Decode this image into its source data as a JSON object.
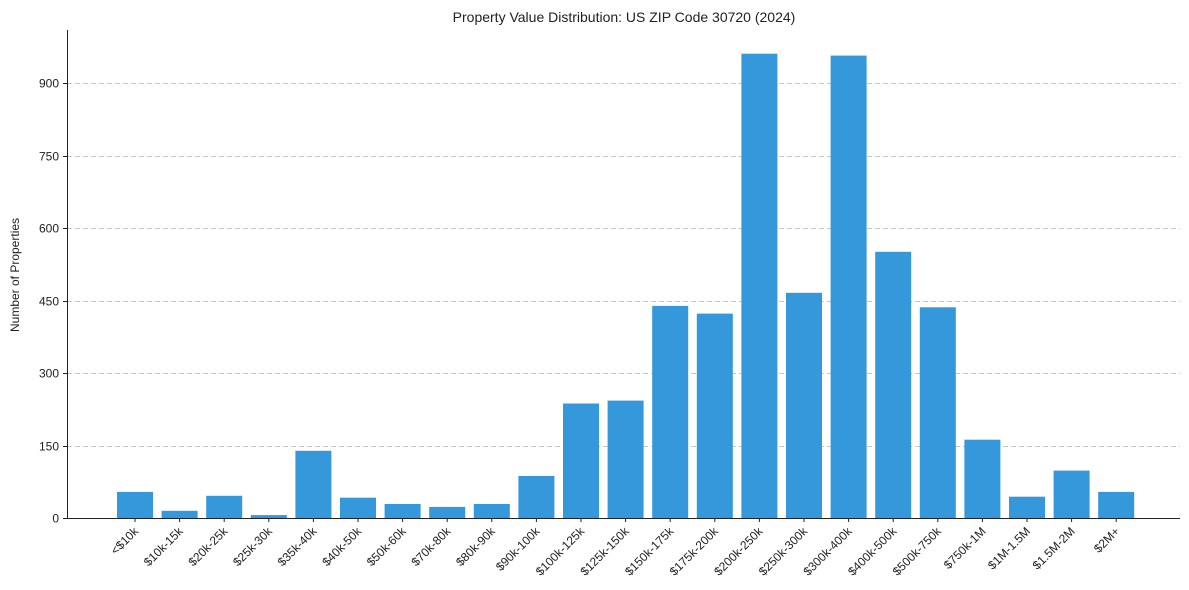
{
  "chart_data": {
    "type": "bar",
    "title": "Property Value Distribution: US ZIP Code 30720 (2024)",
    "xlabel": "",
    "ylabel": "Number of Properties",
    "ylim": [
      0,
      1010
    ],
    "yticks": [
      0,
      150,
      300,
      450,
      600,
      750,
      900
    ],
    "grid": "y-dashed",
    "bar_color": "#3498db",
    "categories": [
      "<$10k",
      "$10k-15k",
      "$20k-25k",
      "$25k-30k",
      "$35k-40k",
      "$40k-50k",
      "$50k-60k",
      "$70k-80k",
      "$80k-90k",
      "$90k-100k",
      "$100k-125k",
      "$125k-150k",
      "$150k-175k",
      "$175k-200k",
      "$200k-250k",
      "$250k-300k",
      "$300k-400k",
      "$400k-500k",
      "$500k-750k",
      "$750k-1M",
      "$1M-1.5M",
      "$1.5M-2M",
      "$2M+"
    ],
    "values": [
      54,
      15,
      46,
      6,
      139,
      42,
      29,
      23,
      29,
      87,
      237,
      243,
      439,
      423,
      961,
      466,
      957,
      551,
      436,
      162,
      44,
      98,
      54
    ]
  }
}
